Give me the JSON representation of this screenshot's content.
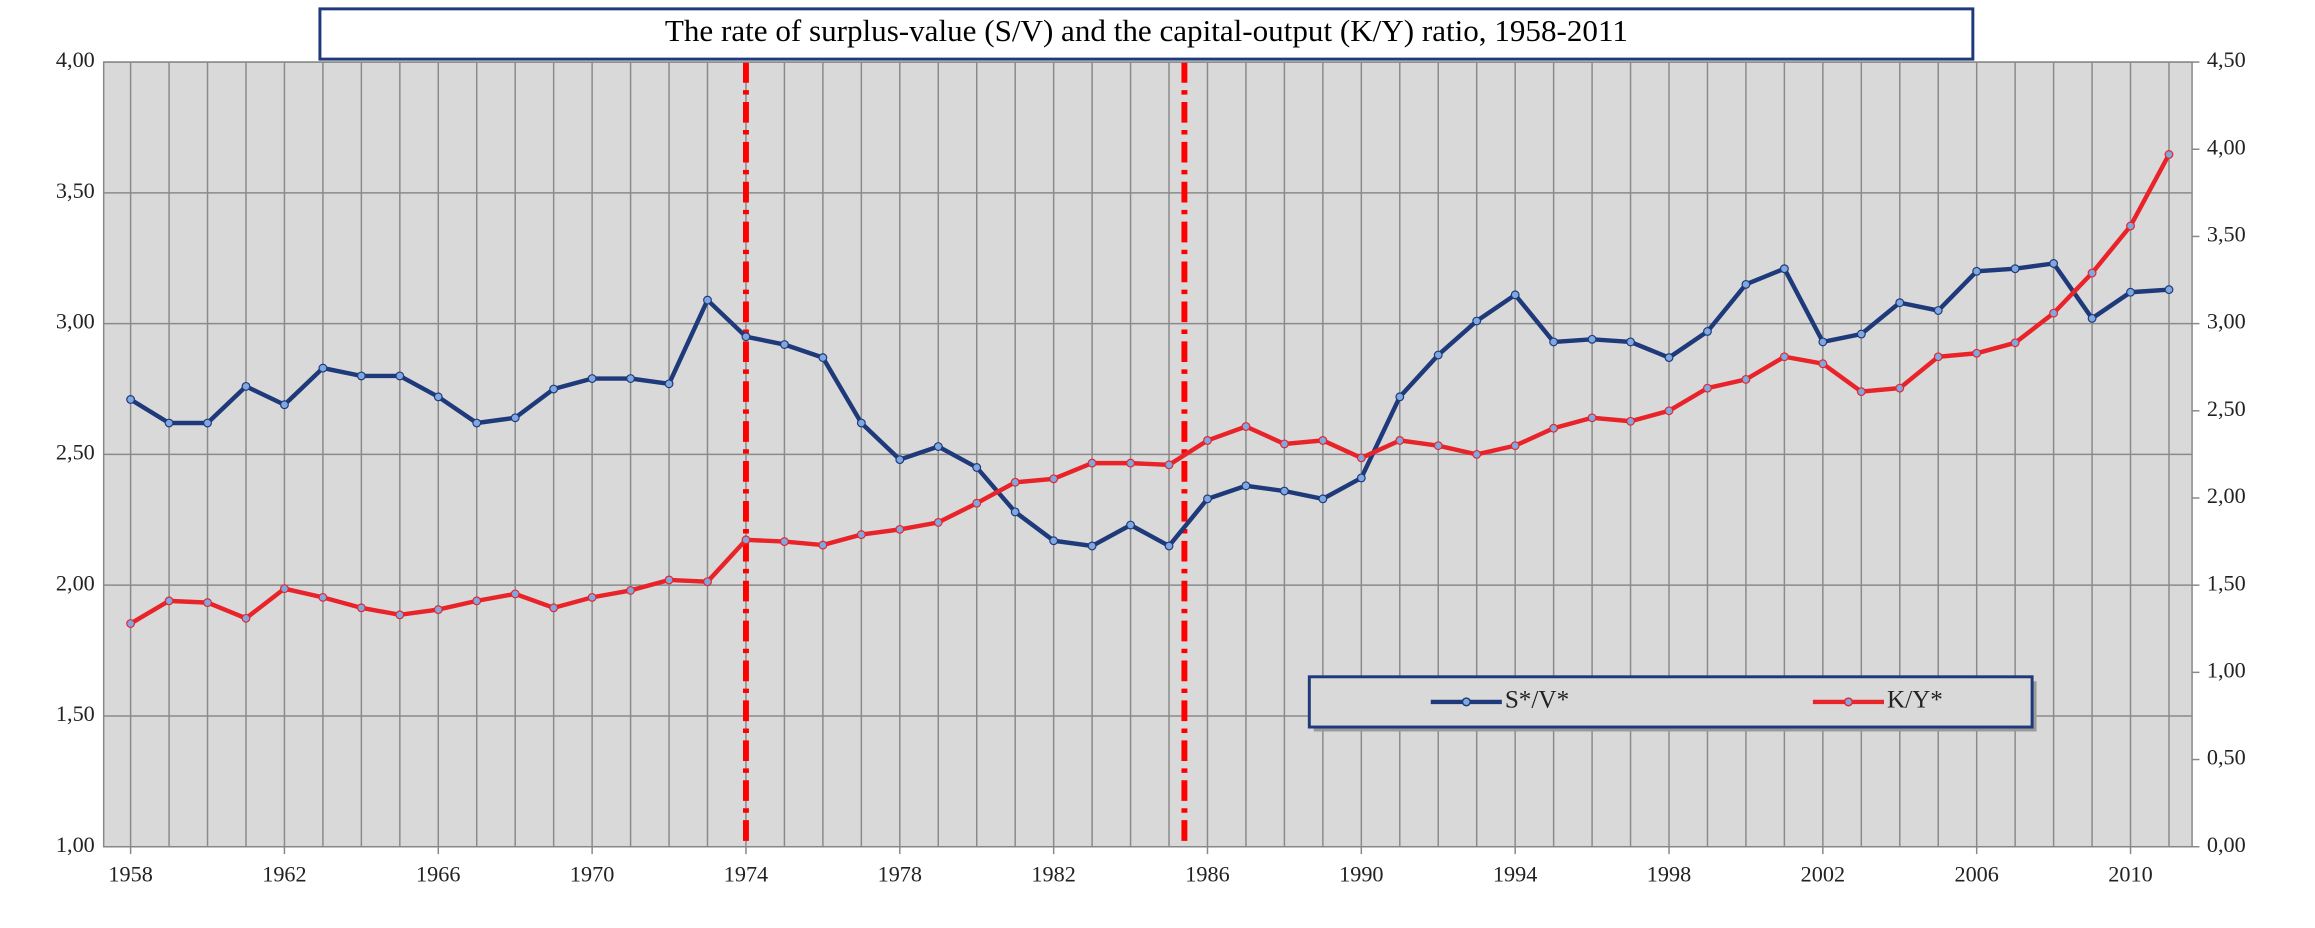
{
  "chart_data": {
    "type": "line",
    "title": "The rate of surplus-value (S/V) and the capital-output (K/Y) ratio, 1958-2011",
    "x": [
      1958,
      1959,
      1960,
      1961,
      1962,
      1963,
      1964,
      1965,
      1966,
      1967,
      1968,
      1969,
      1970,
      1971,
      1972,
      1973,
      1974,
      1975,
      1976,
      1977,
      1978,
      1979,
      1980,
      1981,
      1982,
      1983,
      1984,
      1985,
      1986,
      1987,
      1988,
      1989,
      1990,
      1991,
      1992,
      1993,
      1994,
      1995,
      1996,
      1997,
      1998,
      1999,
      2000,
      2001,
      2002,
      2003,
      2004,
      2005,
      2006,
      2007,
      2008,
      2009,
      2010,
      2011
    ],
    "series": [
      {
        "name": "S*/V*",
        "color": "#1f3a7a",
        "axis": "y",
        "values": [
          2.71,
          2.62,
          2.62,
          2.76,
          2.69,
          2.83,
          2.8,
          2.8,
          2.72,
          2.62,
          2.64,
          2.75,
          2.79,
          2.79,
          2.77,
          3.09,
          2.95,
          2.92,
          2.87,
          2.62,
          2.48,
          2.53,
          2.45,
          2.28,
          2.17,
          2.15,
          2.23,
          2.15,
          2.33,
          2.38,
          2.36,
          2.33,
          2.41,
          2.72,
          2.88,
          3.01,
          3.11,
          2.93,
          2.94,
          2.93,
          2.87,
          2.97,
          3.15,
          3.21,
          2.93,
          2.96,
          3.08,
          3.05,
          3.2,
          3.21,
          3.23,
          3.02,
          3.12,
          3.13
        ]
      },
      {
        "name": "K/Y*",
        "color": "#e8242a",
        "axis": "y2",
        "values": [
          1.28,
          1.41,
          1.4,
          1.31,
          1.48,
          1.43,
          1.37,
          1.33,
          1.36,
          1.41,
          1.45,
          1.37,
          1.43,
          1.47,
          1.53,
          1.52,
          1.76,
          1.75,
          1.73,
          1.79,
          1.82,
          1.86,
          1.97,
          2.09,
          2.11,
          2.2,
          2.2,
          2.19,
          2.33,
          2.41,
          2.31,
          2.33,
          2.23,
          2.33,
          2.3,
          2.25,
          2.3,
          2.4,
          2.46,
          2.44,
          2.5,
          2.63,
          2.68,
          2.81,
          2.77,
          2.61,
          2.63,
          2.81,
          2.83,
          2.89,
          3.06,
          3.29,
          3.56,
          3.97
        ]
      }
    ],
    "xlim": [
      1957.3,
      2011.6
    ],
    "xticks": [
      1958,
      1962,
      1966,
      1970,
      1974,
      1978,
      1982,
      1986,
      1990,
      1994,
      1998,
      2002,
      2006,
      2010
    ],
    "ylim": [
      1,
      4
    ],
    "yticks": [
      {
        "value": 1,
        "label": "1,00"
      },
      {
        "value": 1.5,
        "label": "1,50"
      },
      {
        "value": 2,
        "label": "2,00"
      },
      {
        "value": 2.5,
        "label": "2,50"
      },
      {
        "value": 3,
        "label": "3,00"
      },
      {
        "value": 3.5,
        "label": "3,50"
      },
      {
        "value": 4,
        "label": "4,00"
      }
    ],
    "y2lim": [
      0,
      4.5
    ],
    "y2ticks": [
      {
        "value": 0,
        "label": "0,00"
      },
      {
        "value": 0.5,
        "label": "0,50"
      },
      {
        "value": 1,
        "label": "1,00"
      },
      {
        "value": 1.5,
        "label": "1,50"
      },
      {
        "value": 2,
        "label": "2,00"
      },
      {
        "value": 2.5,
        "label": "2,50"
      },
      {
        "value": 3,
        "label": "3,00"
      },
      {
        "value": 3.5,
        "label": "3,50"
      },
      {
        "value": 4,
        "label": "4,00"
      },
      {
        "value": 4.5,
        "label": "4,50"
      }
    ],
    "vlines": [
      1974,
      1985.4
    ],
    "vline_color": "#ff0000",
    "grid": true,
    "legend": "lower right"
  }
}
